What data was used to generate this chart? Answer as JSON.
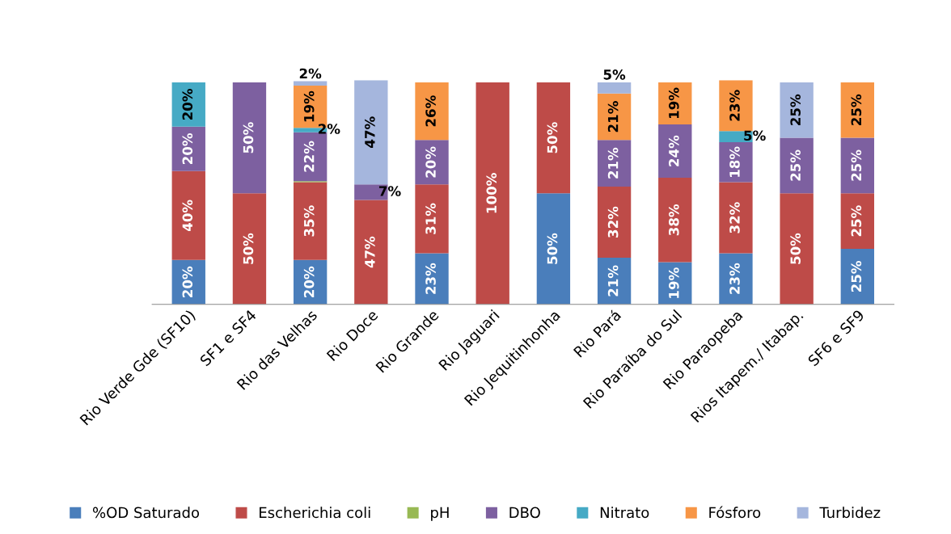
{
  "chart_data": {
    "type": "bar",
    "stacked": true,
    "legend": "bottom",
    "grid": false,
    "categories": [
      "Rio Verde Gde (SF10)",
      "SF1 e SF4",
      "Rio das Velhas",
      "Rio Doce",
      "Rio Grande",
      "Rio Jaguari",
      "Rio Jequitinhonha",
      "Rio Pará",
      "Rio Paraíba do Sul",
      "Rio Paraopeba",
      "Rios Itapem./ Itabap.",
      "SF6 e SF9"
    ],
    "series": [
      {
        "name": "%OD Saturado",
        "color": "#4a7ebb",
        "values": [
          20,
          0,
          20,
          0,
          23,
          0,
          50,
          21,
          19,
          23,
          0,
          25
        ],
        "value_labels": [
          "20%",
          null,
          "20%",
          null,
          "23%",
          null,
          "50%",
          "21%",
          "19%",
          "23%",
          null,
          "25%"
        ]
      },
      {
        "name": "Escherichia coli",
        "color": "#be4b48",
        "values": [
          40,
          50,
          35,
          47,
          31,
          100,
          50,
          32,
          38,
          32,
          50,
          25
        ],
        "value_labels": [
          "40%",
          "50%",
          "35%",
          "47%",
          "31%",
          "100%",
          "50%",
          "32%",
          "38%",
          "32%",
          "50%",
          "25%"
        ]
      },
      {
        "name": "pH",
        "color": "#98b954",
        "values": [
          0,
          0,
          0.5,
          0,
          0,
          0,
          0,
          0,
          0,
          0,
          0,
          0
        ],
        "value_labels": [
          null,
          null,
          null,
          null,
          null,
          null,
          null,
          null,
          null,
          null,
          null,
          null
        ]
      },
      {
        "name": "DBO",
        "color": "#7d60a0",
        "values": [
          20,
          50,
          22,
          7,
          20,
          0,
          0,
          21,
          24,
          18,
          25,
          25
        ],
        "value_labels": [
          "20%",
          "50%",
          "22%",
          "7%",
          "20%",
          null,
          null,
          "21%",
          "24%",
          "18%",
          "25%",
          "25%"
        ]
      },
      {
        "name": "Nitrato",
        "color": "#46aac5",
        "values": [
          20,
          0,
          2,
          0,
          0,
          0,
          0,
          0,
          0,
          5,
          0,
          0
        ],
        "value_labels": [
          "20%",
          null,
          "2%",
          null,
          null,
          null,
          null,
          null,
          null,
          "5%",
          null,
          null
        ]
      },
      {
        "name": "Fósforo",
        "color": "#f79646",
        "values": [
          0,
          0,
          19,
          0,
          26,
          0,
          0,
          21,
          19,
          23,
          0,
          25
        ],
        "value_labels": [
          null,
          null,
          "19%",
          null,
          "26%",
          null,
          null,
          "21%",
          "19%",
          "23%",
          null,
          "25%"
        ]
      },
      {
        "name": "Turbidez",
        "color": "#a5b6dd",
        "values": [
          0,
          0,
          2,
          47,
          0,
          0,
          0,
          5,
          0,
          0,
          25,
          0
        ],
        "value_labels": [
          null,
          null,
          "2%",
          "47%",
          null,
          null,
          null,
          "5%",
          null,
          null,
          "25%",
          null
        ]
      }
    ]
  }
}
